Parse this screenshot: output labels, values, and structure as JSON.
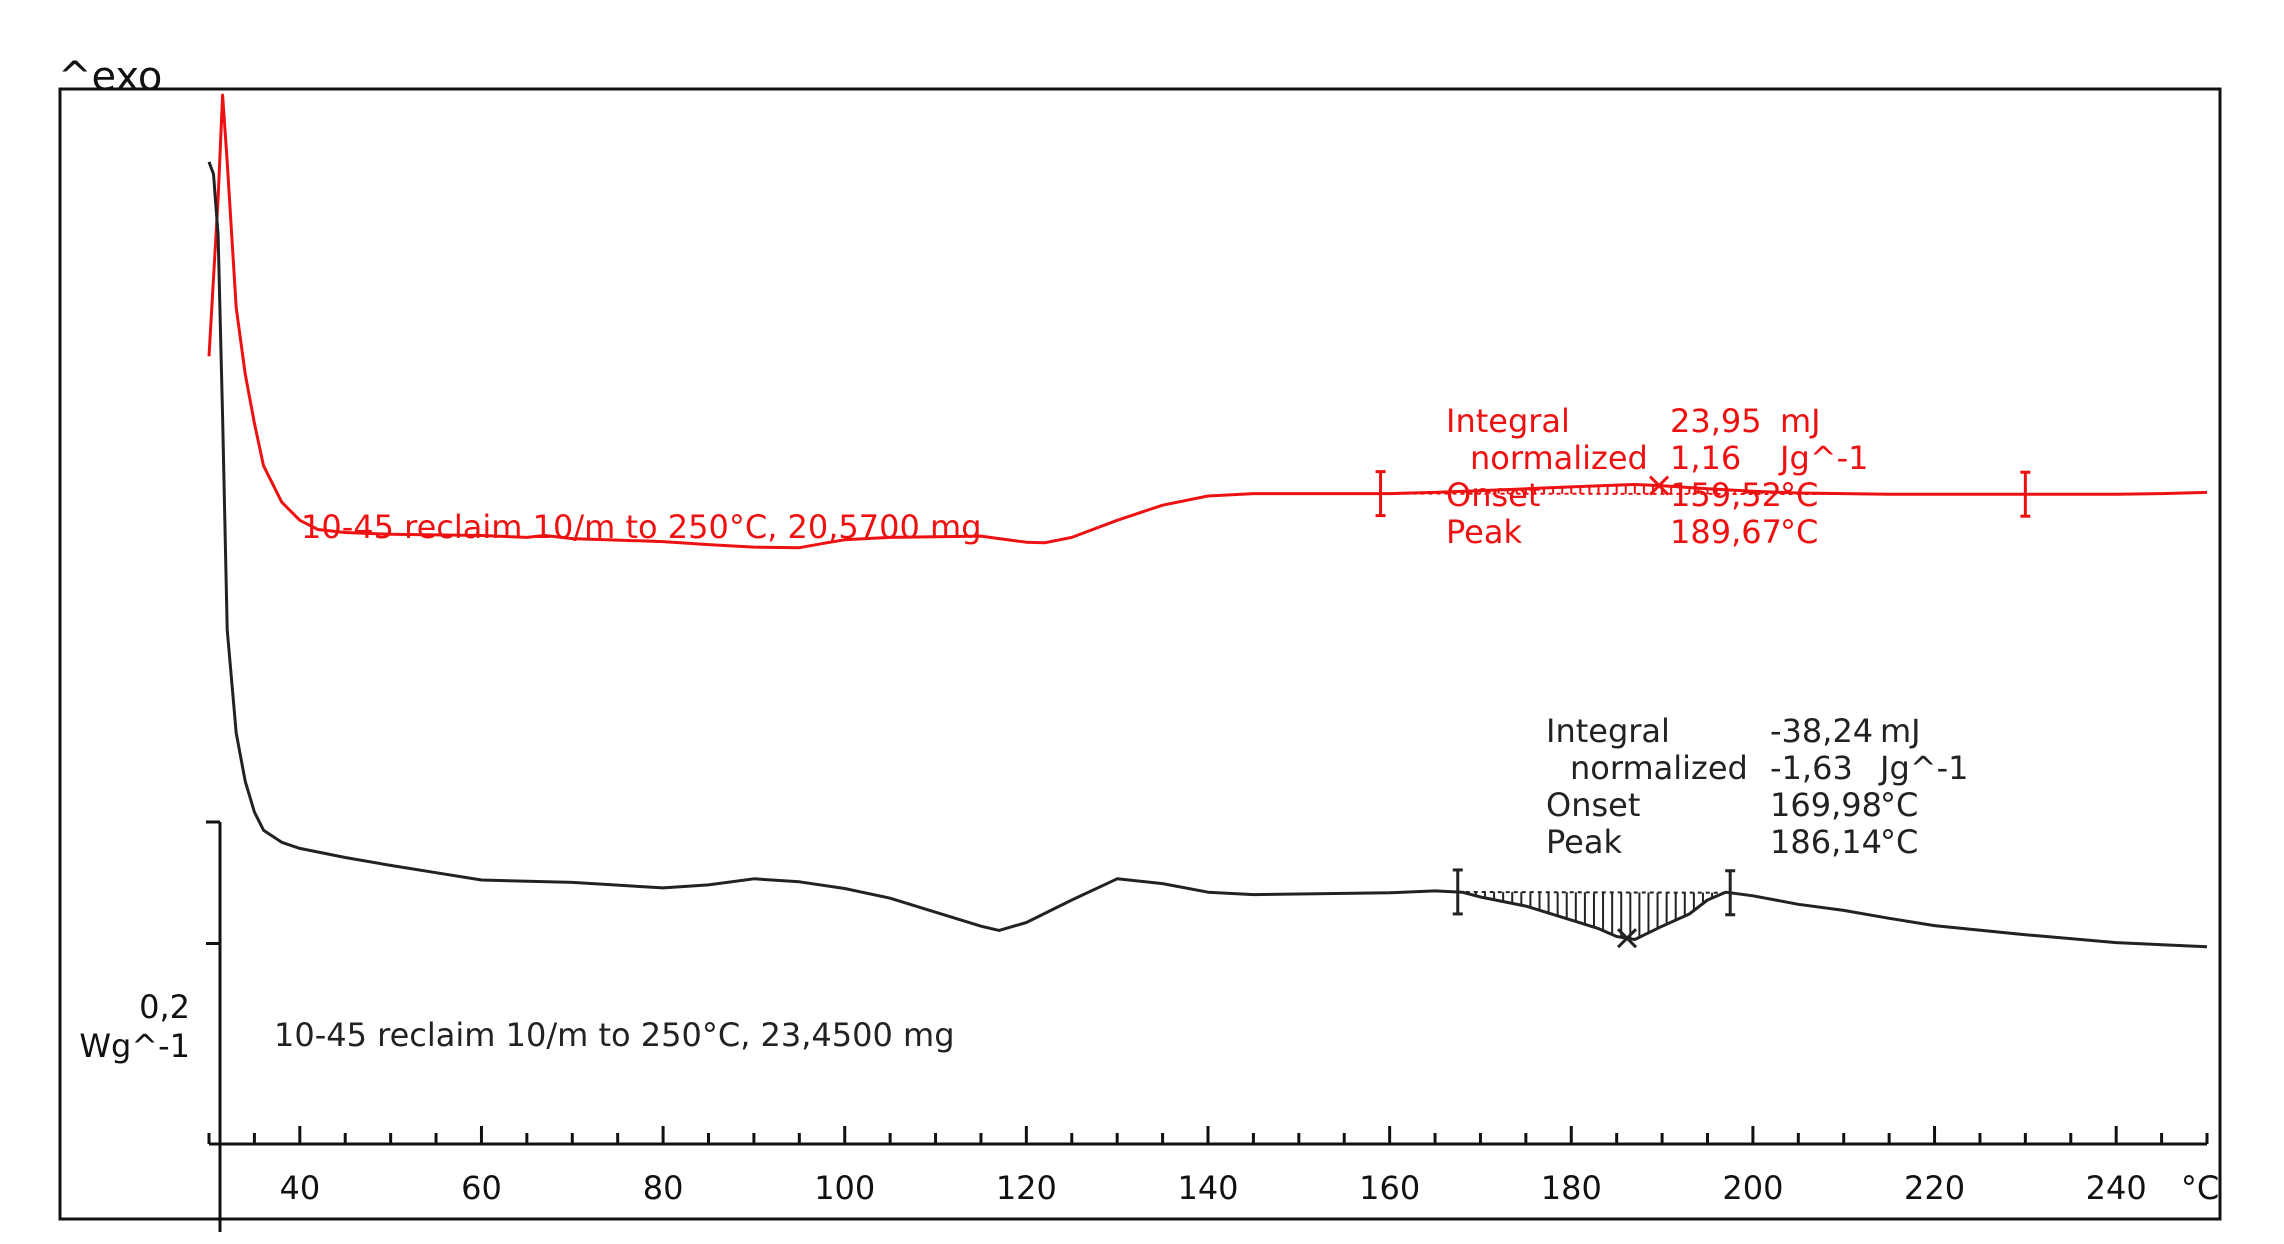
{
  "chart_data": {
    "type": "line",
    "exo_label": "^exo",
    "x_unit": "°C",
    "xlim": [
      30,
      250
    ],
    "x_ticks": [
      40,
      60,
      80,
      100,
      120,
      140,
      160,
      180,
      200,
      220,
      240
    ],
    "x_tick_labels": [
      "40",
      "60",
      "80",
      "100",
      "120",
      "140",
      "160",
      "180",
      "200",
      "220",
      "240"
    ],
    "ylim": [
      -0.52,
      1.34
    ],
    "scale_bar": {
      "value": 0.2,
      "label": "0,2",
      "unit": "Wg^-1"
    },
    "colors": {
      "red": "#ee1111",
      "black": "#222222"
    },
    "series": [
      {
        "name": "10-45 reclaim 10/m to 250°C, 20,5700 mg",
        "color": "red",
        "x": [
          30,
          31,
          31.5,
          32,
          33,
          34,
          35,
          36,
          38,
          40,
          42,
          45,
          50,
          60,
          65,
          67,
          70,
          80,
          85,
          90,
          95,
          98,
          100,
          105,
          110,
          115,
          117,
          120,
          122,
          125,
          130,
          135,
          140,
          145,
          150,
          155,
          160,
          165,
          170,
          175,
          180,
          185,
          187,
          190,
          195,
          200,
          205,
          210,
          215,
          220,
          225,
          230,
          235,
          240,
          245,
          250
        ],
        "y": [
          0.9,
          1.16,
          1.33,
          1.22,
          0.98,
          0.87,
          0.79,
          0.72,
          0.66,
          0.63,
          0.615,
          0.61,
          0.607,
          0.605,
          0.602,
          0.605,
          0.6,
          0.595,
          0.59,
          0.586,
          0.585,
          0.593,
          0.598,
          0.602,
          0.603,
          0.604,
          0.6,
          0.594,
          0.593,
          0.602,
          0.63,
          0.655,
          0.67,
          0.674,
          0.674,
          0.674,
          0.674,
          0.676,
          0.679,
          0.682,
          0.685,
          0.688,
          0.689,
          0.687,
          0.682,
          0.678,
          0.675,
          0.674,
          0.673,
          0.673,
          0.673,
          0.673,
          0.673,
          0.673,
          0.674,
          0.676
        ]
      },
      {
        "name": "10-45 reclaim 10/m to 250°C, 23,4500 mg",
        "color": "black",
        "x": [
          30,
          30.5,
          31,
          31.5,
          32,
          33,
          34,
          35,
          36,
          38,
          40,
          45,
          50,
          55,
          60,
          70,
          80,
          85,
          90,
          95,
          100,
          105,
          110,
          115,
          117,
          120,
          125,
          130,
          135,
          140,
          145,
          150,
          155,
          160,
          165,
          168,
          170,
          175,
          180,
          183,
          185,
          187,
          190,
          193,
          195,
          197,
          200,
          205,
          210,
          215,
          220,
          230,
          240,
          250
        ],
        "y": [
          1.22,
          1.2,
          1.1,
          0.8,
          0.45,
          0.28,
          0.2,
          0.15,
          0.12,
          0.1,
          0.09,
          0.075,
          0.062,
          0.05,
          0.038,
          0.034,
          0.025,
          0.03,
          0.04,
          0.035,
          0.024,
          0.008,
          -0.015,
          -0.038,
          -0.045,
          -0.032,
          0.005,
          0.04,
          0.032,
          0.018,
          0.014,
          0.015,
          0.016,
          0.017,
          0.02,
          0.018,
          0.01,
          -0.005,
          -0.028,
          -0.042,
          -0.055,
          -0.06,
          -0.038,
          -0.018,
          0.005,
          0.018,
          0.012,
          -0.002,
          -0.012,
          -0.025,
          -0.037,
          -0.052,
          -0.065,
          -0.072
        ]
      }
    ],
    "evaluations": [
      {
        "series": "red",
        "x_start": 159.0,
        "x_end": 230.0,
        "peak_x": 189.67,
        "rows": [
          {
            "label": "Integral",
            "value": "23,95",
            "unit": "mJ"
          },
          {
            "label": "normalized",
            "value": "1,16",
            "unit": "Jg^-1"
          },
          {
            "label": "Onset",
            "value": "159,52",
            "unit": "°C"
          },
          {
            "label": "Peak",
            "value": "189,67",
            "unit": "°C"
          }
        ]
      },
      {
        "series": "black",
        "x_start": 167.5,
        "x_end": 197.5,
        "peak_x": 186.14,
        "rows": [
          {
            "label": "Integral",
            "value": "-38,24",
            "unit": "mJ"
          },
          {
            "label": "normalized",
            "value": "-1,63",
            "unit": "Jg^-1"
          },
          {
            "label": "Onset",
            "value": "169,98",
            "unit": "°C"
          },
          {
            "label": "Peak",
            "value": "186,14",
            "unit": "°C"
          }
        ]
      }
    ]
  }
}
